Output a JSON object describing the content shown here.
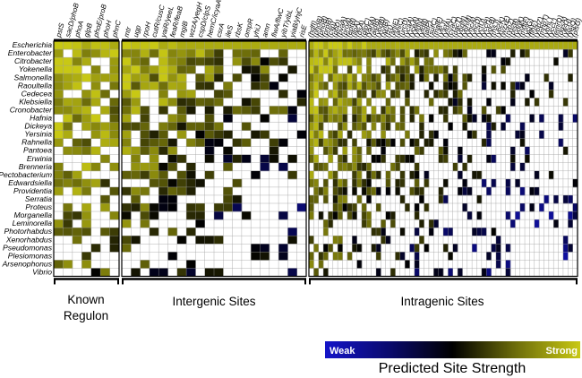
{
  "organisms": [
    "Escherichia",
    "Enterobacter",
    "Citrobacter",
    "Yokenella",
    "Salmonella",
    "Raoultella",
    "Cedecea",
    "Klebsiella",
    "Cronobacter",
    "Hafnia",
    "Dickeya",
    "Yersinia",
    "Rahnella",
    "Pantoea",
    "Erwinia",
    "Brenneria",
    "Pectobacterium",
    "Edwardsiella",
    "Providentia",
    "Serratia",
    "Proteus",
    "Morganella",
    "Leminorella",
    "Photorhabdus",
    "Xenorhabdus",
    "Pseudomonas",
    "Plesiomonas",
    "Arsenophonus",
    "Vibrio"
  ],
  "panels": [
    {
      "label_lines": [
        "Known",
        "Regulon"
      ],
      "genes": [
        "pstS",
        "sacD/phoB",
        "phoA",
        "glpB",
        "phoE/proB",
        "phoH",
        "phnC"
      ],
      "profile": [
        1,
        1,
        0.98,
        0.96,
        0.95,
        0.93,
        0.9,
        0.88,
        0.86,
        0.84,
        0.82,
        0.8,
        0.78,
        0.76,
        0.74,
        0.72,
        0.7,
        0.68,
        0.66,
        0.64,
        0.62,
        0.6,
        0.58,
        0.56,
        0.54,
        0.52,
        0.5,
        0.48,
        0.46
      ],
      "colprof": [
        1,
        0.98,
        0.95,
        0.92,
        0.88,
        0.85,
        0.82
      ],
      "fill": [
        0.88,
        0.85,
        0.8,
        0.75,
        0.7,
        0.6,
        0.55
      ]
    },
    {
      "label_lines": [
        "Intergenic Sites"
      ],
      "genes": [
        "mtr",
        "ugp",
        "rpoH",
        "cutR/cusC",
        "yaiR/yeeL",
        "feaR/feaB",
        "mglB",
        "wzzA/yegH",
        "cspD/clpS",
        "hemC/icyaA",
        "csrA",
        "ileS",
        "rbsK",
        "ompR",
        "yhiJ",
        "amn",
        "flwA/flwC",
        "yibT/yibL",
        "yiaB/yhjC",
        "risE"
      ],
      "profile": [
        1,
        0.95,
        0.92,
        0.9,
        0.88,
        0.86,
        0.83,
        0.8,
        0.76,
        0.72,
        0.7,
        0.68,
        0.66,
        0.64,
        0.62,
        0.6,
        0.58,
        0.56,
        0.54,
        0.52,
        0.5,
        0.48,
        0.46,
        0.44,
        0.42,
        0.4,
        0.38,
        0.36,
        0.34
      ],
      "colprof": [
        0.95,
        0.9,
        0.86,
        0.82,
        0.78,
        0.74,
        0.7,
        0.66,
        0.62,
        0.58,
        0.54,
        0.5,
        0.46,
        0.42,
        0.4,
        0.38,
        0.36,
        0.34,
        0.32,
        0.3
      ],
      "fill": [
        0.92,
        0.9,
        0.88,
        0.86,
        0.84,
        0.82,
        0.8,
        0.77,
        0.74,
        0.7,
        0.66,
        0.62,
        0.58,
        0.54,
        0.5,
        0.45,
        0.4,
        0.35,
        0.3,
        0.25
      ]
    },
    {
      "label_lines": [
        "Intragenic Sites"
      ],
      "genes": [
        "(hdfI)",
        "(phoB)",
        "(phoB)",
        "(prpB)",
        "(cvp)",
        "(pbD)",
        "(bvaA)",
        "(proA)",
        "(eptB)",
        "(lipA)",
        "(dsA)",
        "(glpC)",
        "(yahA)",
        "(aidB)",
        "(ybdB)",
        "(xylB)",
        "(fzr)",
        "(ahiE)",
        "(ahiC)",
        "(urcD)",
        "(ycaA)",
        "(yceA)",
        "(yfdN)",
        "(yfdB)",
        "(iatP)",
        "(sufC)",
        "(malF)",
        "(yfcJ)",
        "(yfdA)",
        "(cyaC)",
        "(uacT)",
        "(ybdN)",
        "(ybhM)",
        "(yhcA)",
        "(yhcD)",
        "(yctU)",
        "(yccH)",
        "(ydcB)",
        "(rhsJ)",
        "(ybcK)",
        "(wzxE)",
        "(rybZ)",
        "(ptsB)",
        "(ydgK)",
        "(mdtF)",
        "(ycjG)",
        "(flhE)",
        "(ybbZ)",
        "(mhpT)",
        "(ybhL)",
        "(yccL)",
        "(emrD)",
        "(dgsA)",
        "(yjcH)",
        "(yejQ)",
        "(plsG)"
      ],
      "profile": [
        1,
        0.95,
        0.92,
        0.9,
        0.88,
        0.86,
        0.84,
        0.82,
        0.8,
        0.78,
        0.76,
        0.74,
        0.72,
        0.7,
        0.68,
        0.66,
        0.64,
        0.62,
        0.6,
        0.58,
        0.56,
        0.54,
        0.52,
        0.5,
        0.48,
        0.46,
        0.44,
        0.42,
        0.4
      ],
      "colprof": [
        0.95,
        0.93,
        0.9,
        0.88,
        0.85,
        0.82,
        0.8,
        0.77,
        0.74,
        0.72,
        0.7,
        0.68,
        0.66,
        0.64,
        0.62,
        0.6,
        0.58,
        0.56,
        0.54,
        0.52,
        0.5,
        0.48,
        0.46,
        0.44,
        0.42,
        0.4,
        0.38,
        0.36,
        0.34,
        0.32,
        0.3,
        0.28,
        0.26,
        0.24,
        0.22,
        0.2,
        0.18,
        0.16,
        0.14,
        0.12,
        0.1,
        0.08,
        0.06,
        0.05,
        0.04,
        0.03,
        0.02,
        0.02,
        0.01,
        0.01,
        0.01,
        0.01,
        0.01,
        0.01,
        0.01,
        0.01
      ],
      "fill": [
        0.95,
        0.93,
        0.91,
        0.9,
        0.88,
        0.86,
        0.84,
        0.82,
        0.8,
        0.78,
        0.76,
        0.74,
        0.72,
        0.7,
        0.68,
        0.66,
        0.64,
        0.62,
        0.6,
        0.58,
        0.56,
        0.54,
        0.52,
        0.5,
        0.48,
        0.46,
        0.44,
        0.42,
        0.4,
        0.38,
        0.36,
        0.34,
        0.32,
        0.3,
        0.28,
        0.26,
        0.24,
        0.22,
        0.2,
        0.18,
        0.16,
        0.14,
        0.12,
        0.1,
        0.09,
        0.08,
        0.07,
        0.06,
        0.05,
        0.05,
        0.05,
        0.05,
        0.05,
        0.05,
        0.05,
        0.05
      ]
    }
  ],
  "legend": {
    "weak": "Weak",
    "strong": "Strong",
    "title": "Predicted Site Strength",
    "colors": [
      "#1414c8",
      "#0a0a6e",
      "#000000",
      "#6e6e0a",
      "#c8c814"
    ]
  }
}
